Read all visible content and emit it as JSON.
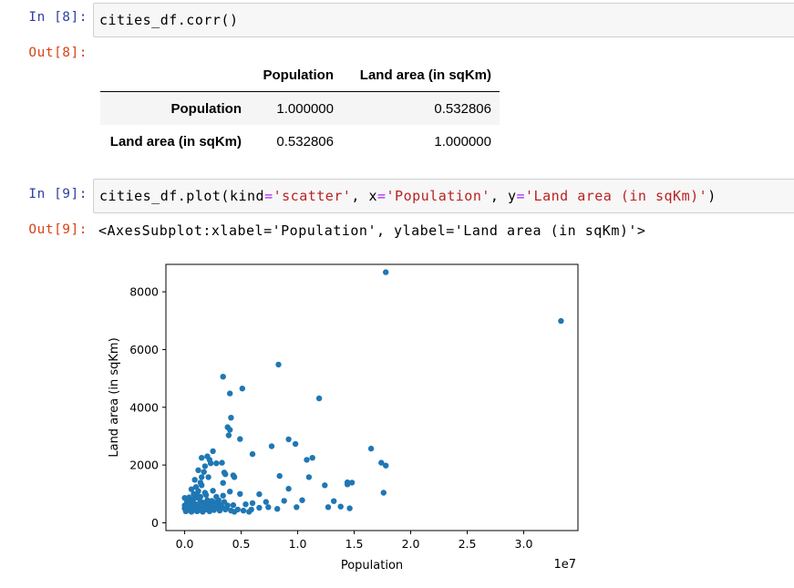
{
  "cells": [
    {
      "in_prompt": "In [8]:",
      "code": "cities_df.corr()",
      "out_prompt": "Out[8]:",
      "table": {
        "columns": [
          "",
          "Population",
          "Land area (in sqKm)"
        ],
        "rows": [
          {
            "index": "Population",
            "values": [
              "1.000000",
              "0.532806"
            ]
          },
          {
            "index": "Land area (in sqKm)",
            "values": [
              "0.532806",
              "1.000000"
            ]
          }
        ]
      }
    },
    {
      "in_prompt": "In [9]:",
      "code_parts": [
        "cities_df.plot(kind",
        "=",
        "'scatter'",
        ", x",
        "=",
        "'Population'",
        ", y",
        "=",
        "'Land area (in sqKm)'",
        ")"
      ],
      "out_prompt": "Out[9]:",
      "output_text": "<AxesSubplot:xlabel='Population', ylabel='Land area (in sqKm)'>"
    }
  ],
  "chart_data": {
    "type": "scatter",
    "title": "",
    "xlabel": "Population",
    "ylabel": "Land area (in sqKm)",
    "x_offset_label": "1e7",
    "xlim": [
      -0.166,
      3.48
    ],
    "ylim": [
      -270,
      8950
    ],
    "xticks": [
      0.0,
      0.5,
      1.0,
      1.5,
      2.0,
      2.5,
      3.0
    ],
    "xtick_labels": [
      "0.0",
      "0.5",
      "1.0",
      "1.5",
      "2.0",
      "2.5",
      "3.0"
    ],
    "yticks": [
      0,
      2000,
      4000,
      6000,
      8000
    ],
    "ytick_labels": [
      "0",
      "2000",
      "4000",
      "6000",
      "8000"
    ],
    "grid": false,
    "point_color": "#1f77b4",
    "points": [
      [
        1.78,
        8680
      ],
      [
        3.33,
        6990
      ],
      [
        0.83,
        5480
      ],
      [
        0.34,
        5060
      ],
      [
        0.51,
        4650
      ],
      [
        0.4,
        4480
      ],
      [
        1.19,
        4310
      ],
      [
        0.41,
        3640
      ],
      [
        0.38,
        3310
      ],
      [
        0.4,
        3220
      ],
      [
        0.39,
        3030
      ],
      [
        0.49,
        2900
      ],
      [
        0.92,
        2890
      ],
      [
        0.98,
        2730
      ],
      [
        0.77,
        2650
      ],
      [
        1.65,
        2570
      ],
      [
        0.25,
        2480
      ],
      [
        0.6,
        2380
      ],
      [
        0.15,
        2250
      ],
      [
        0.2,
        2300
      ],
      [
        0.22,
        2180
      ],
      [
        1.13,
        2250
      ],
      [
        1.08,
        2180
      ],
      [
        1.74,
        2080
      ],
      [
        1.78,
        1980
      ],
      [
        0.28,
        2060
      ],
      [
        0.33,
        2080
      ],
      [
        0.23,
        2060
      ],
      [
        0.18,
        1960
      ],
      [
        0.12,
        1820
      ],
      [
        0.17,
        1760
      ],
      [
        0.35,
        1740
      ],
      [
        0.36,
        1680
      ],
      [
        0.43,
        1640
      ],
      [
        0.44,
        1580
      ],
      [
        0.84,
        1620
      ],
      [
        1.1,
        1580
      ],
      [
        0.15,
        1580
      ],
      [
        0.21,
        1580
      ],
      [
        0.09,
        1490
      ],
      [
        0.14,
        1390
      ],
      [
        0.34,
        1380
      ],
      [
        1.44,
        1400
      ],
      [
        1.48,
        1390
      ],
      [
        1.44,
        1330
      ],
      [
        1.24,
        1300
      ],
      [
        0.92,
        1180
      ],
      [
        0.06,
        1160
      ],
      [
        0.1,
        1240
      ],
      [
        0.15,
        1300
      ],
      [
        0.25,
        1110
      ],
      [
        0.4,
        1080
      ],
      [
        0.49,
        1000
      ],
      [
        0.66,
        990
      ],
      [
        1.76,
        1040
      ],
      [
        0.08,
        1000
      ],
      [
        0.11,
        960
      ],
      [
        0.19,
        960
      ],
      [
        0.28,
        900
      ],
      [
        0.34,
        940
      ],
      [
        0.04,
        880
      ],
      [
        0.0,
        860
      ],
      [
        0.12,
        860
      ],
      [
        1.04,
        780
      ],
      [
        0.88,
        760
      ],
      [
        0.72,
        720
      ],
      [
        0.6,
        680
      ],
      [
        0.54,
        640
      ],
      [
        0.43,
        610
      ],
      [
        0.38,
        600
      ],
      [
        0.32,
        620
      ],
      [
        0.27,
        700
      ],
      [
        0.23,
        680
      ],
      [
        0.18,
        620
      ],
      [
        0.1,
        640
      ],
      [
        0.05,
        620
      ],
      [
        0.0,
        600
      ],
      [
        0.02,
        720
      ],
      [
        0.07,
        750
      ],
      [
        0.14,
        730
      ],
      [
        0.2,
        780
      ],
      [
        0.24,
        760
      ],
      [
        0.3,
        780
      ],
      [
        0.35,
        720
      ],
      [
        1.32,
        750
      ],
      [
        1.38,
        560
      ],
      [
        1.27,
        540
      ],
      [
        1.46,
        500
      ],
      [
        0.99,
        540
      ],
      [
        0.82,
        480
      ],
      [
        0.74,
        540
      ],
      [
        0.66,
        520
      ],
      [
        0.59,
        460
      ],
      [
        0.57,
        380
      ],
      [
        0.52,
        420
      ],
      [
        0.47,
        460
      ],
      [
        0.44,
        380
      ],
      [
        0.41,
        420
      ],
      [
        0.36,
        460
      ],
      [
        0.31,
        420
      ],
      [
        0.26,
        440
      ],
      [
        0.22,
        400
      ],
      [
        0.19,
        460
      ],
      [
        0.16,
        380
      ],
      [
        0.13,
        440
      ],
      [
        0.11,
        400
      ],
      [
        0.08,
        440
      ],
      [
        0.06,
        380
      ],
      [
        0.03,
        440
      ],
      [
        0.01,
        400
      ],
      [
        0.0,
        500
      ],
      [
        0.04,
        520
      ],
      [
        0.09,
        540
      ],
      [
        0.13,
        520
      ],
      [
        0.17,
        560
      ],
      [
        0.21,
        540
      ],
      [
        0.25,
        520
      ],
      [
        0.29,
        560
      ],
      [
        0.33,
        540
      ],
      [
        0.37,
        520
      ],
      [
        0.06,
        660
      ],
      [
        0.12,
        600
      ],
      [
        0.16,
        700
      ],
      [
        0.22,
        620
      ],
      [
        0.28,
        620
      ],
      [
        0.02,
        560
      ],
      [
        0.08,
        820
      ],
      [
        0.14,
        900
      ],
      [
        0.18,
        1040
      ],
      [
        0.12,
        1100
      ],
      [
        0.06,
        780
      ]
    ]
  }
}
